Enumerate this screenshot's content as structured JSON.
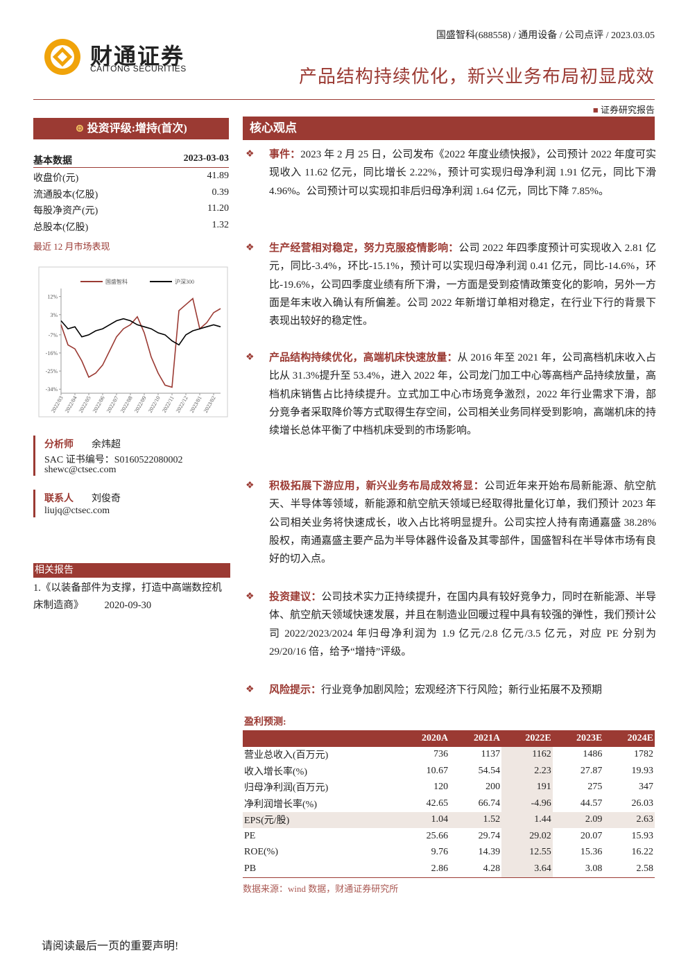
{
  "header": {
    "meta": "国盛智科(688558) / 通用设备 / 公司点评 / 2023.03.05",
    "logo_cn": "财通证券",
    "logo_en": "CAITONG SECURITIES",
    "title": "产品结构持续优化，新兴业务布局初显成效",
    "report_label": "证券研究报告"
  },
  "rating": "投资评级:增持(首次)",
  "basic_data": {
    "title": "基本数据",
    "date": "2023-03-03",
    "rows": [
      [
        "收盘价(元)",
        "41.89"
      ],
      [
        "流通股本(亿股)",
        "0.39"
      ],
      [
        "每股净资产(元)",
        "11.20"
      ],
      [
        "总股本(亿股)",
        "1.32"
      ]
    ]
  },
  "market_label": "最近 12 月市场表现",
  "chart_data": {
    "type": "line",
    "x": [
      "2022/03",
      null,
      "2022/04",
      null,
      "2022/05",
      null,
      "2022/06",
      null,
      "2022/07",
      null,
      "2022/08",
      null,
      "2022/09",
      null,
      "2022/10",
      null,
      "2022/11",
      null,
      "2022/12",
      null,
      "2023/01",
      null,
      "2023/02",
      null
    ],
    "series": [
      {
        "name": "国盛智科",
        "color": "#9b3a33",
        "values": [
          -2,
          -12,
          -14,
          -20,
          -28,
          -26,
          -22,
          -15,
          -8,
          -4,
          -2,
          2,
          -6,
          -18,
          -26,
          -32,
          -33,
          5,
          8,
          11,
          -4,
          -1,
          4,
          6
        ]
      },
      {
        "name": "沪深300",
        "color": "#000000",
        "values": [
          0,
          -4,
          -3,
          -8,
          -7,
          -5,
          -4,
          -2,
          0,
          1,
          0,
          -2,
          -3,
          -4,
          -6,
          -7,
          -10,
          -12,
          -7,
          -5,
          -4,
          -3,
          -2,
          -3
        ]
      }
    ],
    "ylim": [
      -36,
      16
    ],
    "yticks": [
      {
        "value": 12,
        "label": "12%"
      },
      {
        "value": 3,
        "label": "3%"
      },
      {
        "value": -7,
        "label": "-7%"
      },
      {
        "value": -16,
        "label": "-16%"
      },
      {
        "value": -25,
        "label": "-25%"
      },
      {
        "value": -34,
        "label": "-34%"
      }
    ],
    "legend": "top"
  },
  "analyst": {
    "label": "分析师",
    "name": "余炜超",
    "sac": "SAC 证书编号：S0160522080002",
    "email": "shewc@ctsec.com"
  },
  "contact": {
    "label": "联系人",
    "name": "刘俊奇",
    "email": "liujq@ctsec.com"
  },
  "related": {
    "title": "相关报告",
    "item": "1.《以装备部件为支撑，打造中高端数控机床制造商》",
    "date": "2020-09-30"
  },
  "core": {
    "title": "核心观点",
    "sections": [
      {
        "heading": "事件：",
        "body": "2023 年 2 月 25 日，公司发布《2022 年度业绩快报》，公司预计 2022 年度可实现收入 11.62 亿元，同比增长 2.22%，预计可实现归母净利润 1.91 亿元，同比下滑 4.96%。公司预计可以实现扣非后归母净利润 1.64 亿元，同比下降 7.85%。"
      },
      {
        "heading": "生产经营相对稳定，努力克服疫情影响：",
        "body": "公司 2022 年四季度预计可实现收入 2.81 亿元，同比-3.4%，环比-15.1%，预计可以实现归母净利润 0.41 亿元，同比-14.6%，环比-19.6%，公司四季度业绩有所下滑，一方面是受到疫情政策变化的影响，另外一方面是年末收入确认有所偏差。公司 2022 年新增订单相对稳定，在行业下行的背景下表现出较好的稳定性。"
      },
      {
        "heading": "产品结构持续优化，高端机床快速放量：",
        "body": "从 2016 年至 2021 年，公司高档机床收入占比从 31.3%提升至 53.4%，进入 2022 年，公司龙门加工中心等高档产品持续放量，高档机床销售占比持续提升。立式加工中心市场竞争激烈，2022 年行业需求下滑，部分竞争者采取降价等方式取得生存空间，公司相关业务同样受到影响，高端机床的持续增长总体平衡了中档机床受到的市场影响。"
      },
      {
        "heading": "积极拓展下游应用，新兴业务布局成效将显：",
        "body": "公司近年来开始布局新能源、航空航天、半导体等领域，新能源和航空航天领域已经取得批量化订单，我们预计 2023 年公司相关业务将快速成长，收入占比将明显提升。公司实控人持有南通嘉盛 38.28%股权，南通嘉盛主要产品为半导体器件设备及其零部件，国盛智科在半导体市场有良好的切入点。"
      },
      {
        "heading": "投资建议：",
        "body": "公司技术实力正持续提升，在国内具有较好竞争力，同时在新能源、半导体、航空航天领域快速发展，并且在制造业回暖过程中具有较强的弹性，我们预计公司 2022/2023/2024 年归母净利润为 1.9 亿元/2.8 亿元/3.5 亿元，对应 PE 分别为 29/20/16 倍，给予“增持”评级。"
      },
      {
        "heading": "风险提示：",
        "body": "行业竞争加剧风险；宏观经济下行风险；新行业拓展不及预期"
      }
    ]
  },
  "forecast": {
    "title": "盈利预测:",
    "columns": [
      "2020A",
      "2021A",
      "2022E",
      "2023E",
      "2024E"
    ],
    "rows": [
      {
        "label": "营业总收入(百万元)",
        "values": [
          "736",
          "1137",
          "1162",
          "1486",
          "1782"
        ]
      },
      {
        "label": "收入增长率(%)",
        "values": [
          "10.67",
          "54.54",
          "2.23",
          "27.87",
          "19.93"
        ]
      },
      {
        "label": "归母净利润(百万元)",
        "values": [
          "120",
          "200",
          "191",
          "275",
          "347"
        ]
      },
      {
        "label": "净利润增长率(%)",
        "values": [
          "42.65",
          "66.74",
          "-4.96",
          "44.57",
          "26.03"
        ]
      },
      {
        "label": "EPS(元/股)",
        "values": [
          "1.04",
          "1.52",
          "1.44",
          "2.09",
          "2.63"
        ]
      },
      {
        "label": "PE",
        "values": [
          "25.66",
          "29.74",
          "29.02",
          "20.07",
          "15.93"
        ]
      },
      {
        "label": "ROE(%)",
        "values": [
          "9.76",
          "14.39",
          "12.55",
          "15.36",
          "16.22"
        ]
      },
      {
        "label": "PB",
        "values": [
          "2.86",
          "4.28",
          "3.64",
          "3.08",
          "2.58"
        ]
      }
    ],
    "source": "数据来源：wind 数据，财通证券研究所"
  },
  "footer": "请阅读最后一页的重要声明!"
}
